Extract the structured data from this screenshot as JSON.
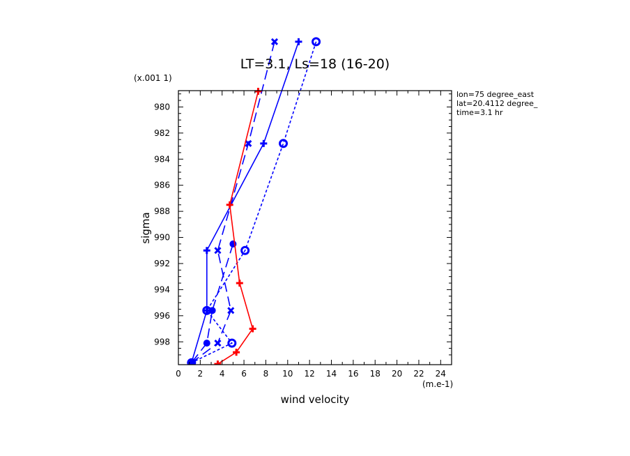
{
  "chart_data": {
    "type": "line",
    "title": "LT=3.1, Ls=18 (16-20)",
    "xlabel": "wind velocity",
    "ylabel": "sigma",
    "x_unit_label": "(m.e-1)",
    "y_unit_label": "(x.001 1)",
    "xlim": [
      0,
      25
    ],
    "ylim": [
      999.75,
      978.75
    ],
    "x_ticks": [
      "0",
      "2",
      "4",
      "6",
      "8",
      "10",
      "12",
      "14",
      "16",
      "18",
      "20",
      "22",
      "24"
    ],
    "y_ticks": [
      "980",
      "982",
      "984",
      "986",
      "988",
      "990",
      "992",
      "994",
      "996",
      "998"
    ],
    "info_lines": [
      "lon=75 degree_east",
      "lat=20.4112 degree_",
      "time=3.1 hr"
    ],
    "series": [
      {
        "color": "#0000ff",
        "dash": "solid",
        "marker": "plus",
        "x": [
          11.0,
          7.8,
          2.6,
          2.6,
          1.2
        ],
        "y": [
          975.0,
          982.8,
          991.0,
          995.6,
          999.6
        ]
      },
      {
        "color": "#0000ff",
        "dash": "long",
        "marker": "cross",
        "x": [
          8.8,
          6.4,
          3.6,
          4.8,
          3.6,
          1.2
        ],
        "y": [
          975.0,
          982.8,
          991.0,
          995.6,
          998.1,
          999.6
        ]
      },
      {
        "color": "#0000ff",
        "dash": "long",
        "marker": "dot",
        "x": [
          5.0,
          3.1,
          2.6,
          1.2
        ],
        "y": [
          990.5,
          995.6,
          998.1,
          999.6
        ]
      },
      {
        "color": "#0000ff",
        "dash": "short",
        "marker": "circle",
        "x": [
          12.6,
          9.6,
          6.1,
          2.6,
          4.9,
          1.2
        ],
        "y": [
          975.0,
          982.8,
          991.0,
          995.6,
          998.1,
          999.6
        ]
      },
      {
        "color": "#ff0000",
        "dash": "solid",
        "marker": "plus",
        "x": [
          7.3,
          4.7,
          5.6,
          6.8,
          5.3,
          3.6
        ],
        "y": [
          978.8,
          987.5,
          993.5,
          997.0,
          998.8,
          999.7
        ]
      }
    ]
  }
}
